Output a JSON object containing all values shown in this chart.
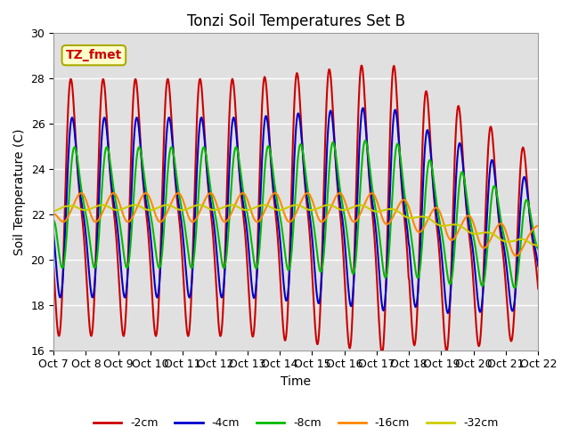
{
  "title": "Tonzi Soil Temperatures Set B",
  "xlabel": "Time",
  "ylabel": "Soil Temperature (C)",
  "ylim": [
    16,
    30
  ],
  "xlim": [
    0,
    15
  ],
  "x_tick_labels": [
    "Oct 7",
    "Oct 8",
    "Oct 9",
    "Oct 10",
    "Oct 11",
    "Oct 12",
    "Oct 13",
    "Oct 14",
    "Oct 15",
    "Oct 16",
    "Oct 17",
    "Oct 18",
    "Oct 19",
    "Oct 20",
    "Oct 21",
    "Oct 22"
  ],
  "y_ticks": [
    16,
    18,
    20,
    22,
    24,
    26,
    28,
    30
  ],
  "legend_labels": [
    "-2cm",
    "-4cm",
    "-8cm",
    "-16cm",
    "-32cm"
  ],
  "line_colors": [
    "#cc0000",
    "#0000cc",
    "#00bb00",
    "#ff8800",
    "#cccc00"
  ],
  "line_widths": [
    1.5,
    1.5,
    1.5,
    1.5,
    1.5
  ],
  "annotation_text": "TZ_fmet",
  "annotation_color": "#cc0000",
  "annotation_bg": "#ffffcc",
  "plot_bg": "#e0e0e0",
  "title_fontsize": 12,
  "axis_fontsize": 10,
  "tick_fontsize": 9
}
